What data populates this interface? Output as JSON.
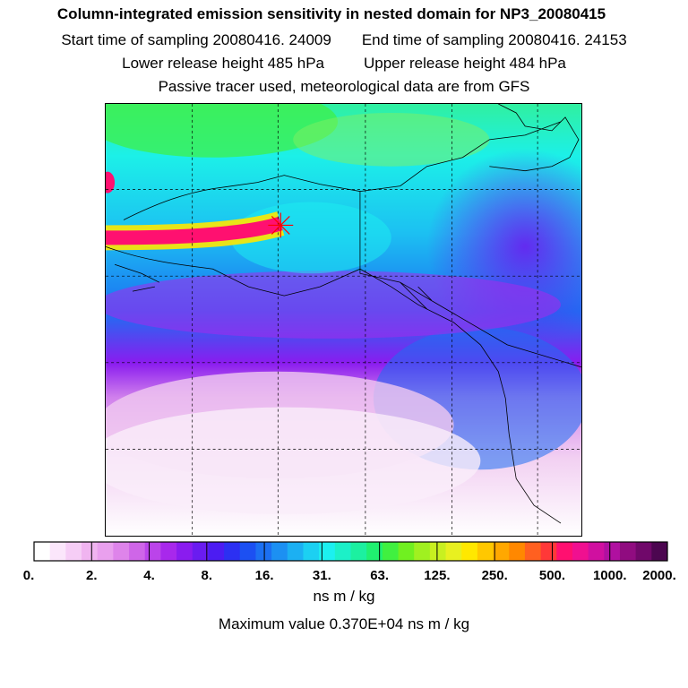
{
  "header": {
    "title": "Column-integrated emission sensitivity in nested domain for NP3_20080415",
    "start_label": "Start time of sampling 20080416. 24009",
    "end_label": "End time of sampling 20080416. 24153",
    "lower_label": "Lower release height  485 hPa",
    "upper_label": "Upper release height  484 hPa",
    "tracer_note": "Passive tracer used, meteorological data are from GFS"
  },
  "colorbar": {
    "colors": [
      "#ffffff",
      "#fbe6fb",
      "#f6cdf6",
      "#f0b4f0",
      "#e9a0ee",
      "#de84ea",
      "#cf66e8",
      "#bb44ea",
      "#a828ec",
      "#8a1cef",
      "#6a1cf0",
      "#4c1cf2",
      "#2c30f2",
      "#1c50f2",
      "#1c70f2",
      "#1c90f2",
      "#1cb0f2",
      "#1cd0f2",
      "#1cf0f0",
      "#1cf0c8",
      "#1cf0a0",
      "#20f070",
      "#40f040",
      "#70f020",
      "#a0f020",
      "#c8f020",
      "#e8f020",
      "#ffe800",
      "#ffc800",
      "#ffa800",
      "#ff8800",
      "#ff6020",
      "#ff3838",
      "#ff1070",
      "#f01090",
      "#d010a0",
      "#b010a0",
      "#900c80",
      "#70086a",
      "#4c0650"
    ],
    "ticks": [
      "0.",
      "2.",
      "4.",
      "8.",
      "16.",
      "31.",
      "63.",
      "125.",
      "250.",
      "500.",
      "1000.",
      "2000."
    ],
    "units": "ns m / kg"
  },
  "max_value_text": "Maximum value  0.370E+04 ns m / kg",
  "map": {
    "receptor_marker": "star-cross-icon",
    "field_colors": {
      "low": "#f4d6f4",
      "mid": "#a63cf0",
      "blue": "#1c70f2",
      "cyan": "#1cf0f0",
      "green": "#40f040",
      "plume": "#ff1070"
    }
  }
}
